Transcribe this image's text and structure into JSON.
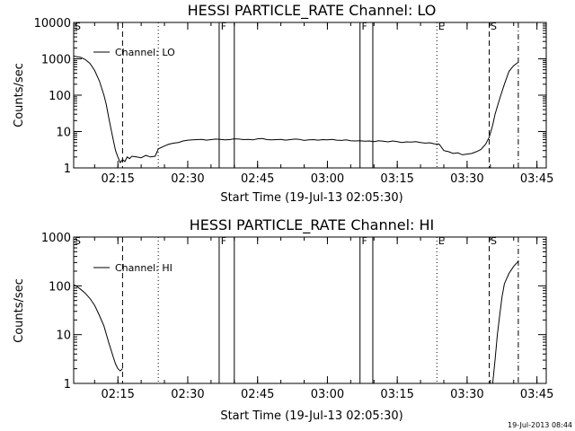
{
  "footer": {
    "timestamp": "19-Jul-2013 08:44"
  },
  "chart_data": [
    {
      "type": "line",
      "title": "HESSI PARTICLE_RATE Channel: LO",
      "xlabel": "Start Time (19-Jul-13 02:05:30)",
      "ylabel": "Counts/sec",
      "yscale": "log",
      "xlim": [
        "02:05:30",
        "03:47:00"
      ],
      "ylim": [
        1,
        10000
      ],
      "xticks": [
        "02:15",
        "02:30",
        "02:45",
        "03:00",
        "03:15",
        "03:30",
        "03:45"
      ],
      "yticks": [
        "1",
        "10",
        "100",
        "1000",
        "10000"
      ],
      "legend": {
        "position": "top-left",
        "entries": [
          "Channel: LO"
        ]
      },
      "markers": [
        {
          "label": "S",
          "time": "02:05:30",
          "style": "solid"
        },
        {
          "label": "",
          "time": "02:16:00",
          "style": "dashed"
        },
        {
          "label": "",
          "time": "02:23:40",
          "style": "dotted"
        },
        {
          "label": "F",
          "time": "02:36:45",
          "style": "solid"
        },
        {
          "label": "",
          "time": "02:40:00",
          "style": "solid"
        },
        {
          "label": "F",
          "time": "03:07:00",
          "style": "solid"
        },
        {
          "label": "",
          "time": "03:09:45",
          "style": "solid"
        },
        {
          "label": "E",
          "time": "03:23:30",
          "style": "dotted"
        },
        {
          "label": "S",
          "time": "03:34:45",
          "style": "dashed"
        },
        {
          "label": "",
          "time": "03:41:00",
          "style": "dashdot"
        }
      ],
      "series": [
        {
          "name": "Channel: LO",
          "x": [
            "02:05:30",
            "02:06:00",
            "02:07:00",
            "02:08:00",
            "02:09:00",
            "02:10:00",
            "02:11:00",
            "02:12:00",
            "02:12:30",
            "02:13:00",
            "02:13:30",
            "02:14:00",
            "02:14:30",
            "02:15:00",
            "02:15:30",
            "02:16:00",
            "02:16:30",
            "02:17:00",
            "02:17:30",
            "02:18:00",
            "02:19:00",
            "02:20:00",
            "02:21:00",
            "02:22:00",
            "02:23:00",
            "02:23:40",
            "02:24:00",
            "02:25:00",
            "02:26:00",
            "02:27:00",
            "02:28:00",
            "02:29:00",
            "02:30:00",
            "02:31:00",
            "02:32:00",
            "02:33:00",
            "02:34:00",
            "02:35:00",
            "02:36:00",
            "02:37:00",
            "02:38:00",
            "02:39:00",
            "02:40:00",
            "02:41:00",
            "02:42:00",
            "02:43:00",
            "02:44:00",
            "02:45:00",
            "02:46:00",
            "02:47:00",
            "02:48:00",
            "02:49:00",
            "02:50:00",
            "02:51:00",
            "02:52:00",
            "02:53:00",
            "02:54:00",
            "02:55:00",
            "02:56:00",
            "02:57:00",
            "02:58:00",
            "02:59:00",
            "03:00:00",
            "03:01:00",
            "03:02:00",
            "03:03:00",
            "03:04:00",
            "03:05:00",
            "03:06:00",
            "03:07:00",
            "03:08:00",
            "03:09:00",
            "03:10:00",
            "03:11:00",
            "03:12:00",
            "03:13:00",
            "03:14:00",
            "03:15:00",
            "03:16:00",
            "03:17:00",
            "03:18:00",
            "03:19:00",
            "03:20:00",
            "03:21:00",
            "03:22:00",
            "03:23:00",
            "03:24:00",
            "03:25:00",
            "03:26:00",
            "03:27:00",
            "03:28:00",
            "03:29:00",
            "03:30:00",
            "03:31:00",
            "03:32:00",
            "03:33:00",
            "03:34:00",
            "03:34:45",
            "03:35:30",
            "03:36:00",
            "03:37:00",
            "03:38:00",
            "03:39:00",
            "03:40:00",
            "03:41:00"
          ],
          "y": [
            1200,
            1150,
            1100,
            950,
            750,
            480,
            250,
            100,
            55,
            25,
            12,
            6,
            3,
            2,
            1.4,
            1.7,
            1.5,
            2,
            1.8,
            2.1,
            2,
            1.9,
            2.2,
            2,
            2.1,
            3.3,
            3.5,
            4,
            4.5,
            4.8,
            5,
            5.5,
            5.8,
            5.9,
            6,
            6.1,
            5.8,
            6,
            6.2,
            6.1,
            5.9,
            6,
            6.3,
            6.2,
            6,
            6.1,
            5.9,
            6.3,
            6.4,
            6,
            5.9,
            6,
            6.1,
            5.8,
            6,
            6.2,
            6.1,
            5.7,
            5.9,
            6,
            5.8,
            6,
            5.9,
            6.1,
            5.8,
            5.7,
            5.9,
            5.6,
            5.5,
            5.6,
            5.4,
            5.5,
            5.3,
            5.6,
            5.4,
            5.2,
            5.5,
            5.3,
            5,
            5.2,
            5.1,
            5.3,
            5,
            4.8,
            4.9,
            4.6,
            4.5,
            3,
            2.8,
            2.5,
            2.6,
            2.3,
            2.4,
            2.5,
            2.8,
            3.2,
            4.5,
            7,
            15,
            30,
            80,
            200,
            450,
            650,
            800
          ]
        }
      ]
    },
    {
      "type": "line",
      "title": "HESSI PARTICLE_RATE Channel: HI",
      "xlabel": "Start Time (19-Jul-13 02:05:30)",
      "ylabel": "Counts/sec",
      "yscale": "log",
      "xlim": [
        "02:05:30",
        "03:47:00"
      ],
      "ylim": [
        1,
        1000
      ],
      "xticks": [
        "02:15",
        "02:30",
        "02:45",
        "03:00",
        "03:15",
        "03:30",
        "03:45"
      ],
      "yticks": [
        "1",
        "10",
        "100",
        "1000"
      ],
      "legend": {
        "position": "top-left",
        "entries": [
          "Channel: HI"
        ]
      },
      "markers": [
        {
          "label": "S",
          "time": "02:05:30",
          "style": "solid"
        },
        {
          "label": "",
          "time": "02:16:00",
          "style": "dashed"
        },
        {
          "label": "",
          "time": "02:23:40",
          "style": "dotted"
        },
        {
          "label": "F",
          "time": "02:36:45",
          "style": "solid"
        },
        {
          "label": "",
          "time": "02:40:00",
          "style": "solid"
        },
        {
          "label": "F",
          "time": "03:07:00",
          "style": "solid"
        },
        {
          "label": "",
          "time": "03:09:45",
          "style": "solid"
        },
        {
          "label": "E",
          "time": "03:23:30",
          "style": "dotted"
        },
        {
          "label": "S",
          "time": "03:34:45",
          "style": "dashed"
        },
        {
          "label": "",
          "time": "03:41:00",
          "style": "dashdot"
        }
      ],
      "series": [
        {
          "name": "Channel: HI",
          "x": [
            "02:05:30",
            "02:06:00",
            "02:07:00",
            "02:08:00",
            "02:09:00",
            "02:10:00",
            "02:11:00",
            "02:12:00",
            "02:13:00",
            "02:14:00",
            "02:14:30",
            "02:15:00",
            "02:15:30",
            "02:16:00"
          ],
          "y": [
            105,
            100,
            85,
            70,
            55,
            40,
            25,
            15,
            7,
            3.5,
            2.5,
            2,
            1.8,
            2
          ]
        },
        {
          "name": "Channel: HI",
          "x": [
            "03:35:30",
            "03:36:00",
            "03:36:30",
            "03:37:00",
            "03:37:30",
            "03:38:00",
            "03:39:00",
            "03:40:00",
            "03:41:00"
          ],
          "y": [
            1,
            3,
            10,
            25,
            60,
            110,
            180,
            250,
            320
          ]
        }
      ]
    }
  ]
}
